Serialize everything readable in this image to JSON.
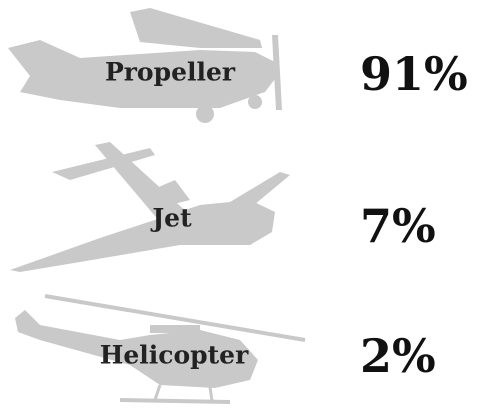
{
  "items": [
    {
      "label": "Propeller",
      "share": "91%"
    },
    {
      "label": "Jet",
      "share": "7%"
    },
    {
      "label": "Helicopter",
      "share": "2%"
    }
  ]
}
